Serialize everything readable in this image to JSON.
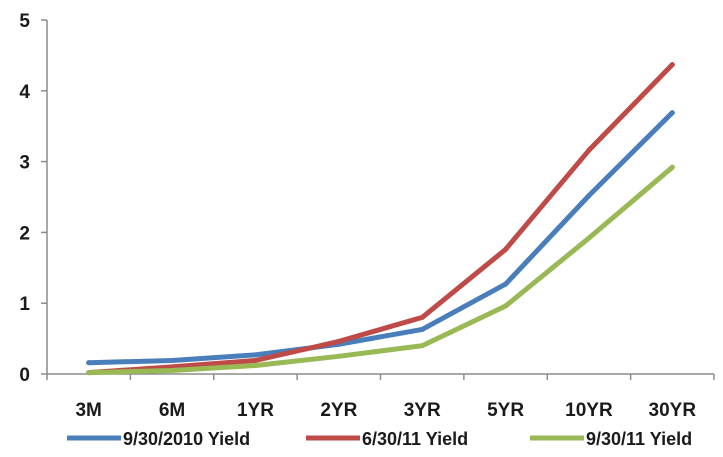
{
  "chart_data": {
    "type": "line",
    "title": "",
    "xlabel": "",
    "ylabel": "",
    "categories": [
      "3M",
      "6M",
      "1YR",
      "2YR",
      "3YR",
      "5YR",
      "10YR",
      "30YR"
    ],
    "ylim": [
      0,
      5
    ],
    "yticks": [
      "0",
      "1",
      "2",
      "3",
      "4",
      "5"
    ],
    "grid": false,
    "legend_position": "bottom",
    "series": [
      {
        "name": "9/30/2010 Yield",
        "color": "#4a7ebb",
        "values": [
          0.16,
          0.19,
          0.27,
          0.42,
          0.63,
          1.27,
          2.52,
          3.69
        ]
      },
      {
        "name": "6/30/11 Yield",
        "color": "#be4b48",
        "values": [
          0.02,
          0.1,
          0.19,
          0.46,
          0.8,
          1.76,
          3.16,
          4.37
        ]
      },
      {
        "name": "9/30/11 Yield",
        "color": "#98b954",
        "values": [
          0.02,
          0.05,
          0.12,
          0.25,
          0.4,
          0.96,
          1.92,
          2.92
        ]
      }
    ]
  }
}
